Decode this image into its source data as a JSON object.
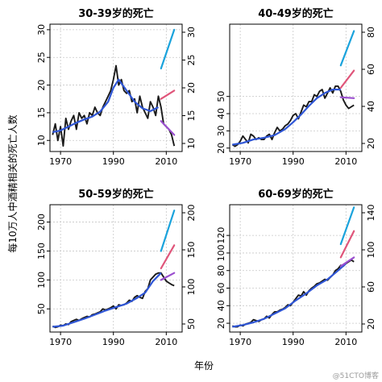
{
  "figure": {
    "ylabel": "每10万人中酒精相关的死亡人数",
    "xlabel": "年份",
    "watermark": "@51CTO博客"
  },
  "colors": {
    "observed": "#1a1a1a",
    "smooth": "#2f56d6",
    "scenario_high": "#1aa3dc",
    "scenario_mid": "#e0557a",
    "scenario_low": "#9b4fcf",
    "grid": "#c8c8c8"
  },
  "chart_data": [
    {
      "type": "line",
      "title": "30-39岁的死亡",
      "xlim": [
        1966,
        2016
      ],
      "ylim": [
        8,
        31
      ],
      "xticks": [
        1970,
        1990,
        2010
      ],
      "yticks_left": [
        10,
        15,
        20,
        25,
        30
      ],
      "yticks_right": [
        10,
        15,
        20,
        25,
        30
      ],
      "observed": {
        "x": [
          1967,
          1968,
          1969,
          1970,
          1971,
          1972,
          1973,
          1974,
          1975,
          1976,
          1977,
          1978,
          1979,
          1980,
          1981,
          1982,
          1983,
          1984,
          1985,
          1986,
          1987,
          1988,
          1989,
          1990,
          1991,
          1992,
          1993,
          1994,
          1995,
          1996,
          1997,
          1998,
          1999,
          2000,
          2001,
          2002,
          2003,
          2004,
          2005,
          2006,
          2007,
          2008,
          2009,
          2010,
          2011,
          2012,
          2013
        ],
        "y": [
          11,
          13,
          10,
          12.5,
          9,
          14,
          12,
          13.5,
          14.5,
          12,
          15,
          14,
          14.5,
          13,
          15,
          14.5,
          16,
          15,
          14.5,
          16,
          17,
          18,
          19,
          21,
          23.5,
          20,
          21,
          19,
          18.5,
          19,
          17,
          17.5,
          15,
          18,
          16,
          15,
          14,
          17,
          16,
          14.5,
          18,
          16,
          13,
          12.5,
          12,
          11,
          9
        ]
      },
      "smooth": {
        "x": [
          1967,
          1970,
          1973,
          1976,
          1979,
          1982,
          1985,
          1988,
          1990,
          1992,
          1995,
          1998,
          2001,
          2004,
          2007
        ],
        "y": [
          11.5,
          11.8,
          12.5,
          13.2,
          13.8,
          14.3,
          15.2,
          17,
          19.5,
          21,
          19,
          17,
          15.8,
          15.3,
          16
        ]
      },
      "scenarios": [
        {
          "key": "high",
          "x": [
            2008,
            2013
          ],
          "y": [
            23,
            30
          ]
        },
        {
          "key": "mid",
          "x": [
            2008,
            2013
          ],
          "y": [
            17.5,
            19
          ]
        },
        {
          "key": "low",
          "x": [
            2008,
            2013
          ],
          "y": [
            13.5,
            11
          ]
        }
      ]
    },
    {
      "type": "line",
      "title": "40-49岁的死亡",
      "xlim": [
        1966,
        2016
      ],
      "ylim": [
        18,
        92
      ],
      "xticks": [
        1970,
        1990,
        2010
      ],
      "yticks_left": [
        20,
        30,
        40,
        50
      ],
      "yticks_right": [
        20,
        40,
        60,
        80
      ],
      "observed": {
        "x": [
          1967,
          1968,
          1969,
          1970,
          1971,
          1972,
          1973,
          1974,
          1975,
          1976,
          1977,
          1978,
          1979,
          1980,
          1981,
          1982,
          1983,
          1984,
          1985,
          1986,
          1987,
          1988,
          1989,
          1990,
          1991,
          1992,
          1993,
          1994,
          1995,
          1996,
          1997,
          1998,
          1999,
          2000,
          2001,
          2002,
          2003,
          2004,
          2005,
          2006,
          2007,
          2008,
          2009,
          2010,
          2011,
          2012,
          2013
        ],
        "y": [
          22,
          21,
          22,
          24,
          27,
          25,
          23,
          28,
          27,
          25,
          26,
          25,
          25,
          27,
          28,
          25,
          29,
          32,
          30,
          31,
          33,
          34,
          36,
          39,
          40,
          37,
          41,
          45,
          44,
          47,
          47,
          51,
          50,
          53,
          54,
          49,
          52,
          55,
          52,
          56,
          56,
          53,
          48,
          45,
          43,
          44,
          45
        ]
      },
      "smooth": {
        "x": [
          1967,
          1971,
          1975,
          1979,
          1983,
          1987,
          1990,
          1993,
          1996,
          1999,
          2002,
          2005,
          2008
        ],
        "y": [
          22,
          23,
          25,
          26,
          27.5,
          31,
          35,
          39.5,
          44.5,
          49,
          52,
          54,
          54
        ]
      },
      "scenarios": [
        {
          "key": "high",
          "x": [
            2008,
            2013
          ],
          "y": [
            68,
            88
          ]
        },
        {
          "key": "mid",
          "x": [
            2008,
            2013
          ],
          "y": [
            55,
            65
          ]
        },
        {
          "key": "low",
          "x": [
            2008,
            2013
          ],
          "y": [
            49.5,
            49
          ]
        }
      ]
    },
    {
      "type": "line",
      "title": "50-59岁的死亡",
      "xlim": [
        1966,
        2016
      ],
      "ylim": [
        10,
        230
      ],
      "xticks": [
        1970,
        1990,
        2010
      ],
      "yticks_left": [
        50,
        100,
        150,
        200
      ],
      "yticks_right": [
        50,
        100,
        150,
        200
      ],
      "observed": {
        "x": [
          1967,
          1968,
          1969,
          1970,
          1971,
          1972,
          1973,
          1974,
          1975,
          1976,
          1977,
          1978,
          1979,
          1980,
          1981,
          1982,
          1983,
          1984,
          1985,
          1986,
          1987,
          1988,
          1989,
          1990,
          1991,
          1992,
          1993,
          1994,
          1995,
          1996,
          1997,
          1998,
          1999,
          2000,
          2001,
          2002,
          2003,
          2004,
          2005,
          2006,
          2007,
          2008,
          2009,
          2010,
          2011,
          2012,
          2013
        ],
        "y": [
          20,
          18,
          19,
          22,
          21,
          24,
          23,
          28,
          30,
          32,
          30,
          33,
          35,
          37,
          36,
          40,
          41,
          43,
          45,
          50,
          48,
          50,
          52,
          55,
          50,
          57,
          56,
          57,
          60,
          65,
          63,
          70,
          73,
          70,
          68,
          80,
          85,
          100,
          105,
          110,
          112,
          112,
          105,
          98,
          95,
          92,
          90
        ]
      },
      "smooth": {
        "x": [
          1967,
          1971,
          1975,
          1979,
          1983,
          1987,
          1991,
          1995,
          1999,
          2002,
          2005,
          2008
        ],
        "y": [
          19,
          21,
          27,
          33,
          40,
          47,
          53,
          59,
          69,
          78,
          98,
          112
        ]
      },
      "scenarios": [
        {
          "key": "high",
          "x": [
            2008,
            2013
          ],
          "y": [
            150,
            220
          ]
        },
        {
          "key": "mid",
          "x": [
            2008,
            2013
          ],
          "y": [
            120,
            160
          ]
        },
        {
          "key": "low",
          "x": [
            2008,
            2013
          ],
          "y": [
            100,
            112
          ]
        }
      ]
    },
    {
      "type": "line",
      "title": "60-69岁的死亡",
      "xlim": [
        1966,
        2016
      ],
      "ylim": [
        10,
        155
      ],
      "xticks": [
        1970,
        1990,
        2010
      ],
      "yticks_left": [
        20,
        40,
        60,
        80,
        100,
        120
      ],
      "yticks_right": [
        20,
        60,
        100,
        140
      ],
      "observed": {
        "x": [
          1967,
          1968,
          1969,
          1970,
          1971,
          1972,
          1973,
          1974,
          1975,
          1976,
          1977,
          1978,
          1979,
          1980,
          1981,
          1982,
          1983,
          1984,
          1985,
          1986,
          1987,
          1988,
          1989,
          1990,
          1991,
          1992,
          1993,
          1994,
          1995,
          1996,
          1997,
          1998,
          1999,
          2000,
          2001,
          2002,
          2003,
          2004,
          2005,
          2006,
          2007,
          2008,
          2009,
          2010,
          2011,
          2012,
          2013
        ],
        "y": [
          17,
          16,
          16,
          18,
          17,
          19,
          20,
          21,
          24,
          23,
          22,
          24,
          25,
          28,
          26,
          30,
          33,
          33,
          35,
          36,
          38,
          41,
          40,
          44,
          48,
          52,
          51,
          56,
          52,
          57,
          60,
          62,
          65,
          66,
          68,
          70,
          69,
          72,
          75,
          80,
          82,
          86,
          85,
          88,
          90,
          92,
          90
        ]
      },
      "smooth": {
        "x": [
          1967,
          1971,
          1975,
          1979,
          1983,
          1987,
          1991,
          1995,
          1999,
          2003,
          2007,
          2010
        ],
        "y": [
          16,
          18,
          21,
          25,
          31,
          37,
          46,
          54,
          63,
          70,
          80,
          88
        ]
      },
      "scenarios": [
        {
          "key": "high",
          "x": [
            2008,
            2013
          ],
          "y": [
            110,
            152
          ]
        },
        {
          "key": "mid",
          "x": [
            2008,
            2013
          ],
          "y": [
            95,
            125
          ]
        },
        {
          "key": "low",
          "x": [
            2008,
            2013
          ],
          "y": [
            85,
            95
          ]
        }
      ]
    }
  ]
}
